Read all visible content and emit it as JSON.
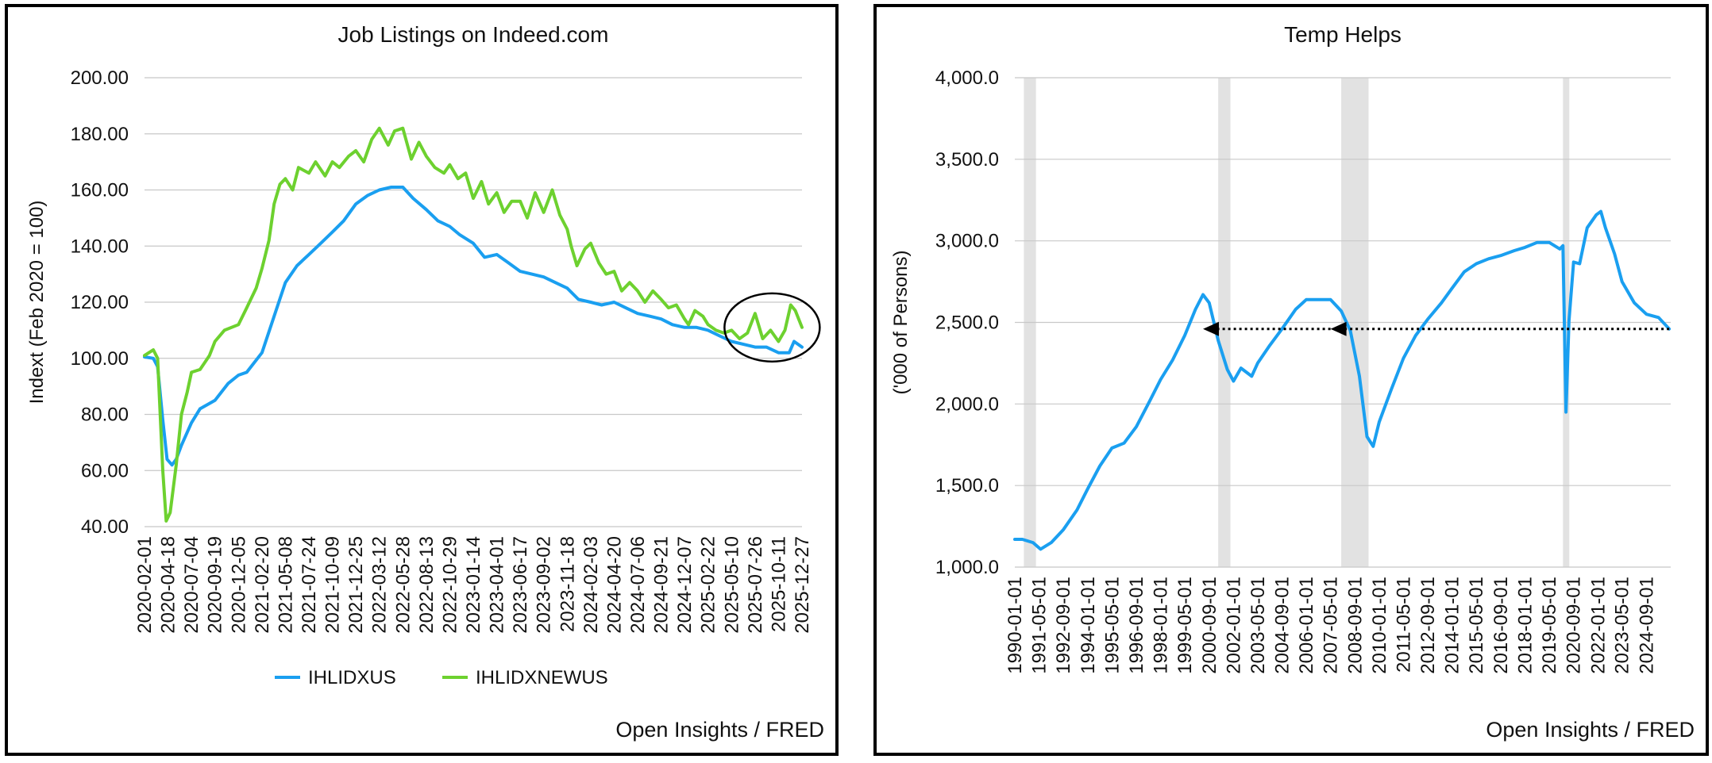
{
  "chart_data": [
    {
      "type": "line",
      "title": "Job Listings on Indeed.com",
      "ylabel": "Indext (Feb 2020 = 100)",
      "xlabel": "",
      "ylim": [
        40,
        200
      ],
      "yticks": [
        "40.00",
        "60.00",
        "80.00",
        "100.00",
        "120.00",
        "140.00",
        "160.00",
        "180.00",
        "200.00"
      ],
      "xtick_labels": [
        "2020-02-01",
        "2020-04-18",
        "2020-07-04",
        "2020-09-19",
        "2020-12-05",
        "2021-02-20",
        "2021-05-08",
        "2021-07-24",
        "2021-10-09",
        "2021-12-25",
        "2022-03-12",
        "2022-05-28",
        "2022-08-13",
        "2022-10-29",
        "2023-01-14",
        "2023-04-01",
        "2023-06-17",
        "2023-09-02",
        "2023-11-18",
        "2024-02-03",
        "2024-04-20",
        "2024-07-06",
        "2024-09-21",
        "2024-12-07",
        "2025-02-22",
        "2025-05-10",
        "2025-07-26",
        "2025-10-11",
        "2025-12-27"
      ],
      "grid": true,
      "legend_position": "bottom",
      "annotation": "circle around recent uptick at right end",
      "source": "Open Insights / FRED",
      "series": [
        {
          "name": "IHLIDXUS",
          "color": "#1a9ff0",
          "x": [
            "2020-02-01",
            "2020-03-01",
            "2020-03-15",
            "2020-04-01",
            "2020-04-15",
            "2020-05-01",
            "2020-05-15",
            "2020-06-01",
            "2020-07-04",
            "2020-08-01",
            "2020-09-19",
            "2020-11-01",
            "2020-12-05",
            "2021-01-01",
            "2021-02-20",
            "2021-04-01",
            "2021-05-08",
            "2021-06-15",
            "2021-07-24",
            "2021-09-01",
            "2021-10-09",
            "2021-11-15",
            "2021-12-25",
            "2022-02-01",
            "2022-03-12",
            "2022-04-20",
            "2022-05-28",
            "2022-07-01",
            "2022-08-13",
            "2022-09-20",
            "2022-10-29",
            "2022-12-01",
            "2023-01-14",
            "2023-02-20",
            "2023-04-01",
            "2023-05-10",
            "2023-06-17",
            "2023-07-25",
            "2023-09-02",
            "2023-10-10",
            "2023-11-18",
            "2023-12-25",
            "2024-02-03",
            "2024-03-10",
            "2024-04-20",
            "2024-05-28",
            "2024-07-06",
            "2024-08-15",
            "2024-09-21",
            "2024-10-28",
            "2024-12-07",
            "2025-01-15",
            "2025-02-22",
            "2025-04-01",
            "2025-05-10",
            "2025-06-18",
            "2025-07-26",
            "2025-09-01",
            "2025-10-11",
            "2025-11-15",
            "2025-12-01",
            "2025-12-27"
          ],
          "y": [
            100.5,
            100,
            97,
            78,
            64,
            62,
            64,
            69,
            77,
            82,
            85,
            91,
            94,
            95,
            102,
            115,
            127,
            133,
            137,
            141,
            145,
            149,
            155,
            158,
            160,
            161,
            161,
            157,
            153,
            149,
            147,
            144,
            141,
            136,
            137,
            134,
            131,
            130,
            129,
            127,
            125,
            121,
            120,
            119,
            120,
            118,
            116,
            115,
            114,
            112,
            111,
            111,
            110,
            108,
            106,
            105,
            104,
            104,
            102,
            102,
            106,
            104
          ]
        },
        {
          "name": "IHLIDXNEWUS",
          "color": "#6dd12f",
          "x": [
            "2020-02-01",
            "2020-03-01",
            "2020-03-15",
            "2020-04-01",
            "2020-04-12",
            "2020-04-25",
            "2020-05-15",
            "2020-06-01",
            "2020-06-20",
            "2020-07-04",
            "2020-08-01",
            "2020-09-01",
            "2020-09-19",
            "2020-10-20",
            "2020-12-05",
            "2021-01-01",
            "2021-02-01",
            "2021-02-20",
            "2021-03-15",
            "2021-04-01",
            "2021-04-20",
            "2021-05-08",
            "2021-06-01",
            "2021-06-20",
            "2021-07-24",
            "2021-08-15",
            "2021-09-15",
            "2021-10-09",
            "2021-11-01",
            "2021-12-01",
            "2021-12-25",
            "2022-01-20",
            "2022-02-15",
            "2022-03-12",
            "2022-04-10",
            "2022-05-01",
            "2022-05-28",
            "2022-06-25",
            "2022-07-20",
            "2022-08-13",
            "2022-09-10",
            "2022-10-10",
            "2022-10-29",
            "2022-11-25",
            "2022-12-20",
            "2023-01-14",
            "2023-02-10",
            "2023-03-05",
            "2023-04-01",
            "2023-04-25",
            "2023-05-20",
            "2023-06-17",
            "2023-07-10",
            "2023-08-05",
            "2023-09-02",
            "2023-09-30",
            "2023-10-25",
            "2023-11-18",
            "2023-12-01",
            "2023-12-20",
            "2024-01-15",
            "2024-02-03",
            "2024-03-01",
            "2024-03-25",
            "2024-04-20",
            "2024-05-15",
            "2024-06-10",
            "2024-07-06",
            "2024-07-30",
            "2024-08-25",
            "2024-09-21",
            "2024-10-15",
            "2024-11-10",
            "2024-12-07",
            "2024-12-20",
            "2025-01-10",
            "2025-02-05",
            "2025-02-22",
            "2025-03-20",
            "2025-04-15",
            "2025-05-10",
            "2025-06-05",
            "2025-07-01",
            "2025-07-26",
            "2025-08-20",
            "2025-09-15",
            "2025-10-11",
            "2025-11-01",
            "2025-11-20",
            "2025-12-05",
            "2025-12-27"
          ],
          "y": [
            101,
            103,
            100,
            60,
            42,
            45,
            62,
            80,
            88,
            95,
            96,
            101,
            106,
            110,
            112,
            118,
            125,
            132,
            142,
            155,
            162,
            164,
            160,
            168,
            166,
            170,
            165,
            170,
            168,
            172,
            174,
            170,
            178,
            182,
            176,
            181,
            182,
            171,
            177,
            172,
            168,
            166,
            169,
            164,
            166,
            157,
            163,
            155,
            159,
            152,
            156,
            156,
            150,
            159,
            152,
            160,
            151,
            146,
            140,
            133,
            139,
            141,
            134,
            130,
            131,
            124,
            127,
            124,
            120,
            124,
            121,
            118,
            119,
            114,
            112,
            117,
            115,
            112,
            110,
            109,
            110,
            107,
            109,
            116,
            107,
            110,
            106,
            110,
            119,
            117,
            111
          ]
        }
      ]
    },
    {
      "type": "line",
      "title": "Temp Helps",
      "ylabel": "('000 of Persons)",
      "xlabel": "",
      "ylim": [
        1000,
        4000
      ],
      "yticks": [
        "1,000.0",
        "1,500.0",
        "2,000.0",
        "2,500.0",
        "3,000.0",
        "3,500.0",
        "4,000.0"
      ],
      "xtick_labels": [
        "1990-01-01",
        "1991-05-01",
        "1992-09-01",
        "1994-01-01",
        "1995-05-01",
        "1996-09-01",
        "1998-01-01",
        "1999-05-01",
        "2000-09-01",
        "2002-01-01",
        "2003-05-01",
        "2004-09-01",
        "2006-01-01",
        "2007-05-01",
        "2008-09-01",
        "2010-01-01",
        "2011-05-01",
        "2012-09-01",
        "2014-01-01",
        "2015-05-01",
        "2016-09-01",
        "2018-01-01",
        "2019-05-01",
        "2020-09-01",
        "2022-01-01",
        "2023-05-01",
        "2024-09-01"
      ],
      "grid": true,
      "recession_shading": [
        [
          "1990-07-01",
          "1991-03-01"
        ],
        [
          "2001-03-01",
          "2001-11-01"
        ],
        [
          "2007-12-01",
          "2009-06-01"
        ],
        [
          "2020-02-01",
          "2020-04-01"
        ]
      ],
      "arrows": [
        {
          "from": "2025-12-01",
          "to": "2007-05-01",
          "level": 2460
        },
        {
          "from": "2007-05-01",
          "to": "2000-05-01",
          "level": 2460
        }
      ],
      "source": "Open Insights / FRED",
      "series": [
        {
          "name": "",
          "color": "#1a9ff0",
          "x": [
            "1990-01-01",
            "1990-06-01",
            "1991-01-01",
            "1991-06-01",
            "1992-01-01",
            "1992-09-01",
            "1993-06-01",
            "1994-01-01",
            "1994-09-01",
            "1995-05-01",
            "1996-01-01",
            "1996-09-01",
            "1997-06-01",
            "1998-01-01",
            "1998-09-01",
            "1999-05-01",
            "1999-12-01",
            "2000-05-01",
            "2000-09-01",
            "2001-03-01",
            "2001-09-01",
            "2002-01-01",
            "2002-06-01",
            "2003-01-01",
            "2003-05-01",
            "2004-01-01",
            "2004-09-01",
            "2005-06-01",
            "2006-01-01",
            "2006-09-01",
            "2007-05-01",
            "2007-12-01",
            "2008-06-01",
            "2008-12-01",
            "2009-05-01",
            "2009-09-01",
            "2010-01-01",
            "2010-09-01",
            "2011-05-01",
            "2012-01-01",
            "2012-09-01",
            "2013-06-01",
            "2014-01-01",
            "2014-09-01",
            "2015-05-01",
            "2016-01-01",
            "2016-09-01",
            "2017-06-01",
            "2018-01-01",
            "2018-09-01",
            "2019-05-01",
            "2019-12-01",
            "2020-02-01",
            "2020-04-01",
            "2020-06-01",
            "2020-09-01",
            "2021-01-01",
            "2021-06-01",
            "2021-12-01",
            "2022-03-01",
            "2022-06-01",
            "2022-12-01",
            "2023-05-01",
            "2024-01-01",
            "2024-09-01",
            "2025-05-01",
            "2025-12-01"
          ],
          "y": [
            1170,
            1170,
            1150,
            1110,
            1150,
            1230,
            1350,
            1480,
            1620,
            1730,
            1760,
            1860,
            2020,
            2150,
            2270,
            2420,
            2580,
            2670,
            2620,
            2390,
            2210,
            2140,
            2220,
            2170,
            2250,
            2360,
            2460,
            2580,
            2640,
            2640,
            2640,
            2570,
            2450,
            2170,
            1800,
            1740,
            1890,
            2090,
            2280,
            2420,
            2520,
            2620,
            2710,
            2810,
            2860,
            2890,
            2910,
            2940,
            2960,
            2990,
            2990,
            2950,
            2970,
            1950,
            2510,
            2870,
            2860,
            3080,
            3160,
            3180,
            3080,
            2920,
            2750,
            2620,
            2550,
            2530,
            2460
          ]
        }
      ]
    }
  ]
}
